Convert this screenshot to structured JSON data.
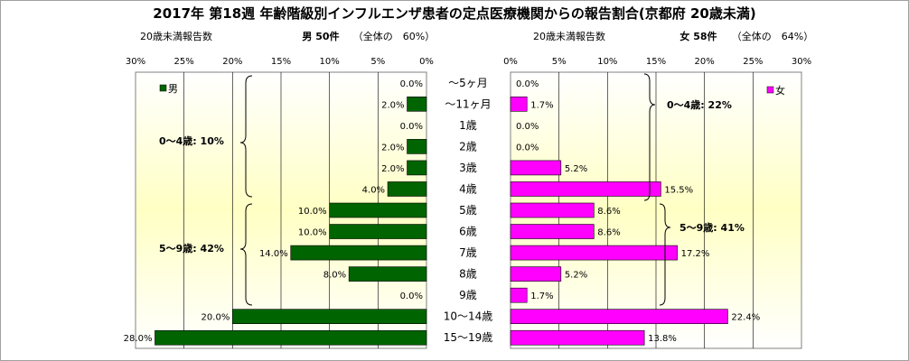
{
  "title": "2017年 第18週 年齢階級別インフルエンザ患者の定点医療機関からの報告割合(京都府 20歳未満)",
  "male": {
    "count_label": "20歳未満報告数",
    "summary": "男 50件",
    "share": "（全体の　60%）",
    "legend": "男",
    "color": "#006400",
    "group_labels": [
      "0～4歳: 10%",
      "5～9歳: 42%"
    ]
  },
  "female": {
    "count_label": "20歳未満報告数",
    "summary": "女 58件",
    "share": "（全体の　64%）",
    "legend": "女",
    "color": "#ff00ff",
    "group_labels": [
      "0～4歳: 22%",
      "5～9歳: 41%"
    ]
  },
  "chart_data": {
    "type": "bar",
    "orientation": "horizontal-butterfly",
    "categories": [
      "～5ヶ月",
      "～11ヶ月",
      "1歳",
      "2歳",
      "3歳",
      "4歳",
      "5歳",
      "6歳",
      "7歳",
      "8歳",
      "9歳",
      "10～14歳",
      "15～19歳"
    ],
    "series": [
      {
        "name": "男",
        "values": [
          0.0,
          2.0,
          0.0,
          2.0,
          2.0,
          4.0,
          10.0,
          10.0,
          14.0,
          8.0,
          0.0,
          20.0,
          28.0
        ],
        "labels": [
          "0.0%",
          "2.0%",
          "0.0%",
          "2.0%",
          "2.0%",
          "4.0%",
          "10.0%",
          "10.0%",
          "14.0%",
          "8.0%",
          "0.0%",
          "20.0%",
          "28.0%"
        ]
      },
      {
        "name": "女",
        "values": [
          0.0,
          1.7,
          0.0,
          0.0,
          5.2,
          15.5,
          8.6,
          8.6,
          17.2,
          5.2,
          1.7,
          22.4,
          13.8
        ],
        "labels": [
          "0.0%",
          "1.7%",
          "0.0%",
          "0.0%",
          "5.2%",
          "15.5%",
          "8.6%",
          "8.6%",
          "17.2%",
          "5.2%",
          "1.7%",
          "22.4%",
          "13.8%"
        ]
      }
    ],
    "xlim": [
      0,
      30
    ],
    "x_ticks": [
      "30%",
      "25%",
      "20%",
      "15%",
      "10%",
      "5%",
      "0%"
    ],
    "x_ticks_right": [
      "0%",
      "5%",
      "10%",
      "15%",
      "20%",
      "25%",
      "30%"
    ],
    "grid": true,
    "legend_male": "top-left",
    "legend_female": "top-right"
  }
}
